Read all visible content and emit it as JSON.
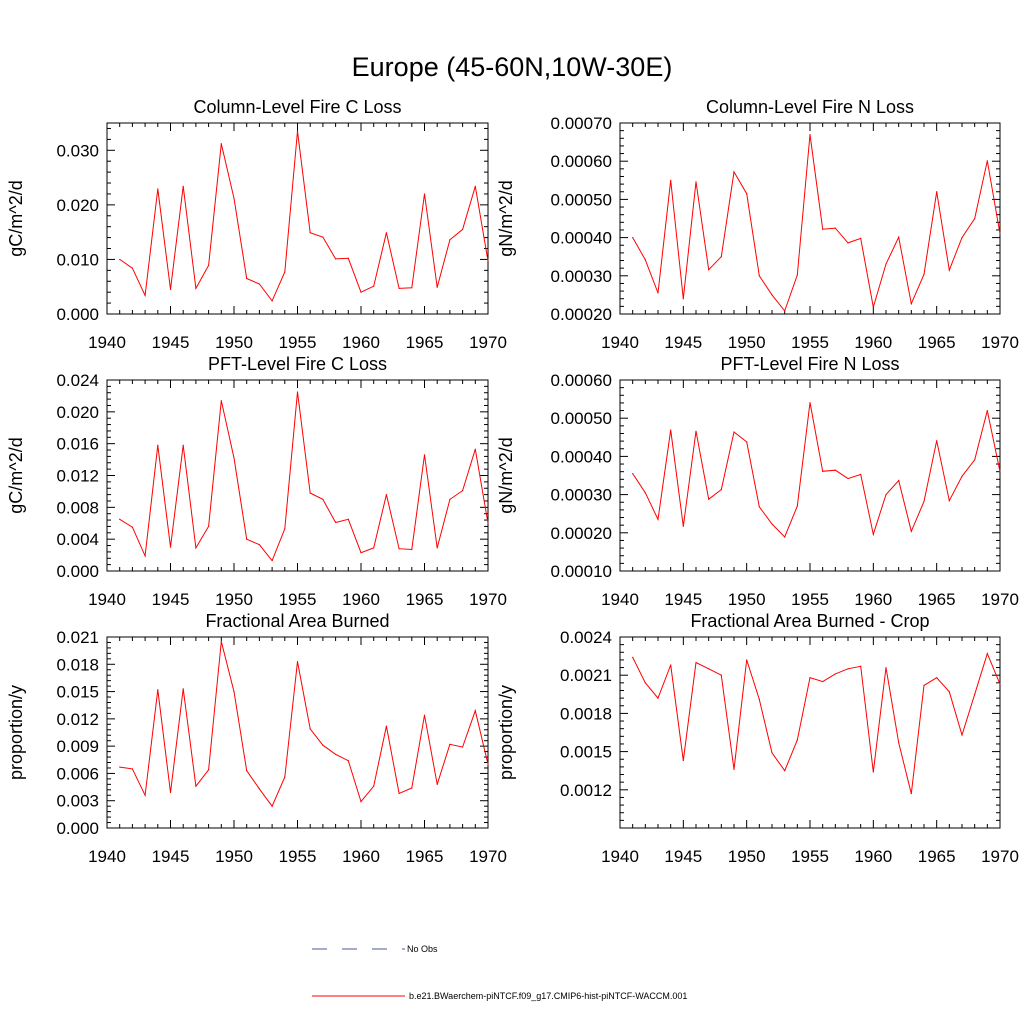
{
  "figure": {
    "title": "Europe (45-60N,10W-30E)",
    "line_color": "#ff0000",
    "obs_color": "#4a5a9a"
  },
  "legend": {
    "items": [
      {
        "label": "No Obs",
        "style": "dashed",
        "color": "#4a5a9a"
      },
      {
        "label": "b.e21.BWaerchem-piNTCF.f09_g17.CMIP6-hist-piNTCF-WACCM.001",
        "style": "solid",
        "color": "#ff0000"
      }
    ]
  },
  "chart_data": [
    {
      "type": "line",
      "title": "Column-Level Fire C Loss",
      "ylabel": "gC/m^2/d",
      "xlim": [
        1940,
        1970
      ],
      "ylim": [
        0,
        0.035
      ],
      "xticks": [
        "1940",
        "1945",
        "1950",
        "1955",
        "1960",
        "1965",
        "1970"
      ],
      "yticks": [
        "0.000",
        "0.010",
        "0.020",
        "0.030"
      ],
      "x": [
        1941,
        1942,
        1943,
        1944,
        1945,
        1946,
        1947,
        1948,
        1949,
        1950,
        1951,
        1952,
        1953,
        1954,
        1955,
        1956,
        1957,
        1958,
        1959,
        1960,
        1961,
        1962,
        1963,
        1964,
        1965,
        1966,
        1967,
        1968,
        1969,
        1970
      ],
      "values": [
        0.01,
        0.0084,
        0.0034,
        0.0229,
        0.0045,
        0.0234,
        0.0047,
        0.0089,
        0.0312,
        0.0212,
        0.0065,
        0.0055,
        0.0024,
        0.0077,
        0.0335,
        0.0149,
        0.0141,
        0.0101,
        0.0102,
        0.004,
        0.0051,
        0.0149,
        0.0047,
        0.0048,
        0.022,
        0.0049,
        0.0136,
        0.0155,
        0.0234,
        0.0097
      ]
    },
    {
      "type": "line",
      "title": "Column-Level Fire N Loss",
      "ylabel": "gN/m^2/d",
      "xlim": [
        1940,
        1970
      ],
      "ylim": [
        0.0002,
        0.0007
      ],
      "xticks": [
        "1940",
        "1945",
        "1950",
        "1955",
        "1960",
        "1965",
        "1970"
      ],
      "yticks": [
        "0.00020",
        "0.00030",
        "0.00040",
        "0.00050",
        "0.00060",
        "0.00070"
      ],
      "x": [
        1941,
        1942,
        1943,
        1944,
        1945,
        1946,
        1947,
        1948,
        1949,
        1950,
        1951,
        1952,
        1953,
        1954,
        1955,
        1956,
        1957,
        1958,
        1959,
        1960,
        1961,
        1962,
        1963,
        1964,
        1965,
        1966,
        1967,
        1968,
        1969,
        1970
      ],
      "values": [
        0.0004,
        0.000342,
        0.000255,
        0.00055,
        0.00024,
        0.000546,
        0.000316,
        0.00035,
        0.000572,
        0.000515,
        0.0003,
        0.00025,
        0.000208,
        0.000302,
        0.00067,
        0.000422,
        0.000425,
        0.000386,
        0.000398,
        0.000218,
        0.000331,
        0.000401,
        0.000227,
        0.000304,
        0.00052,
        0.000315,
        0.0004,
        0.00045,
        0.000601,
        0.00041
      ]
    },
    {
      "type": "line",
      "title": "PFT-Level Fire C Loss",
      "ylabel": "gC/m^2/d",
      "xlim": [
        1940,
        1970
      ],
      "ylim": [
        0,
        0.024
      ],
      "xticks": [
        "1940",
        "1945",
        "1950",
        "1955",
        "1960",
        "1965",
        "1970"
      ],
      "yticks": [
        "0.000",
        "0.004",
        "0.008",
        "0.012",
        "0.016",
        "0.020",
        "0.024"
      ],
      "x": [
        1941,
        1942,
        1943,
        1944,
        1945,
        1946,
        1947,
        1948,
        1949,
        1950,
        1951,
        1952,
        1953,
        1954,
        1955,
        1956,
        1957,
        1958,
        1959,
        1960,
        1961,
        1962,
        1963,
        1964,
        1965,
        1966,
        1967,
        1968,
        1969,
        1970
      ],
      "values": [
        0.0065,
        0.0055,
        0.0019,
        0.0158,
        0.003,
        0.0158,
        0.0029,
        0.0056,
        0.0214,
        0.0142,
        0.004,
        0.0033,
        0.0013,
        0.0053,
        0.0225,
        0.0098,
        0.009,
        0.0061,
        0.0065,
        0.0023,
        0.0029,
        0.0096,
        0.0028,
        0.0027,
        0.0146,
        0.0029,
        0.009,
        0.0101,
        0.0153,
        0.006
      ]
    },
    {
      "type": "line",
      "title": "PFT-Level Fire N Loss",
      "ylabel": "gN/m^2/d",
      "xlim": [
        1940,
        1970
      ],
      "ylim": [
        0.0001,
        0.0006
      ],
      "xticks": [
        "1940",
        "1945",
        "1950",
        "1955",
        "1960",
        "1965",
        "1970"
      ],
      "yticks": [
        "0.00010",
        "0.00020",
        "0.00030",
        "0.00040",
        "0.00050",
        "0.00060"
      ],
      "x": [
        1941,
        1942,
        1943,
        1944,
        1945,
        1946,
        1947,
        1948,
        1949,
        1950,
        1951,
        1952,
        1953,
        1954,
        1955,
        1956,
        1957,
        1958,
        1959,
        1960,
        1961,
        1962,
        1963,
        1964,
        1965,
        1966,
        1967,
        1968,
        1969,
        1970
      ],
      "values": [
        0.000355,
        0.000305,
        0.000235,
        0.000469,
        0.000217,
        0.000466,
        0.000288,
        0.000313,
        0.000464,
        0.000438,
        0.000268,
        0.000223,
        0.000189,
        0.00027,
        0.000541,
        0.000361,
        0.000364,
        0.000342,
        0.000353,
        0.000196,
        0.0003,
        0.000337,
        0.000204,
        0.000282,
        0.000441,
        0.000284,
        0.000348,
        0.000391,
        0.00052,
        0.00036
      ]
    },
    {
      "type": "line",
      "title": "Fractional Area Burned",
      "ylabel": "proportion/y",
      "xlim": [
        1940,
        1970
      ],
      "ylim": [
        0,
        0.021
      ],
      "xticks": [
        "1940",
        "1945",
        "1950",
        "1955",
        "1960",
        "1965",
        "1970"
      ],
      "yticks": [
        "0.000",
        "0.003",
        "0.006",
        "0.009",
        "0.012",
        "0.015",
        "0.018",
        "0.021"
      ],
      "x": [
        1941,
        1942,
        1943,
        1944,
        1945,
        1946,
        1947,
        1948,
        1949,
        1950,
        1951,
        1952,
        1953,
        1954,
        1955,
        1956,
        1957,
        1958,
        1959,
        1960,
        1961,
        1962,
        1963,
        1964,
        1965,
        1966,
        1967,
        1968,
        1969,
        1970
      ],
      "values": [
        0.0067,
        0.0065,
        0.0036,
        0.0152,
        0.0039,
        0.0153,
        0.0046,
        0.0064,
        0.0205,
        0.015,
        0.0063,
        0.0043,
        0.0024,
        0.0056,
        0.0183,
        0.0109,
        0.0091,
        0.0081,
        0.0074,
        0.0029,
        0.0046,
        0.0112,
        0.0038,
        0.0044,
        0.0124,
        0.0048,
        0.0092,
        0.0089,
        0.0129,
        0.007
      ]
    },
    {
      "type": "line",
      "title": "Fractional Area Burned - Crop",
      "ylabel": "proportion/y",
      "xlim": [
        1940,
        1970
      ],
      "ylim": [
        0.0009,
        0.0024
      ],
      "xticks": [
        "1940",
        "1945",
        "1950",
        "1955",
        "1960",
        "1965",
        "1970"
      ],
      "yticks": [
        "0.0012",
        "0.0015",
        "0.0018",
        "0.0021",
        "0.0024"
      ],
      "x": [
        1941,
        1942,
        1943,
        1944,
        1945,
        1946,
        1947,
        1948,
        1949,
        1950,
        1951,
        1952,
        1953,
        1954,
        1955,
        1956,
        1957,
        1958,
        1959,
        1960,
        1961,
        1962,
        1963,
        1964,
        1965,
        1966,
        1967,
        1968,
        1969,
        1970
      ],
      "values": [
        0.00224,
        0.00204,
        0.00192,
        0.00218,
        0.00143,
        0.0022,
        0.00215,
        0.0021,
        0.00136,
        0.00222,
        0.00191,
        0.00149,
        0.00135,
        0.00159,
        0.00208,
        0.00205,
        0.00211,
        0.00215,
        0.00217,
        0.00134,
        0.00216,
        0.00157,
        0.00117,
        0.00202,
        0.00208,
        0.00197,
        0.00163,
        0.00195,
        0.00227,
        0.00203
      ]
    }
  ]
}
